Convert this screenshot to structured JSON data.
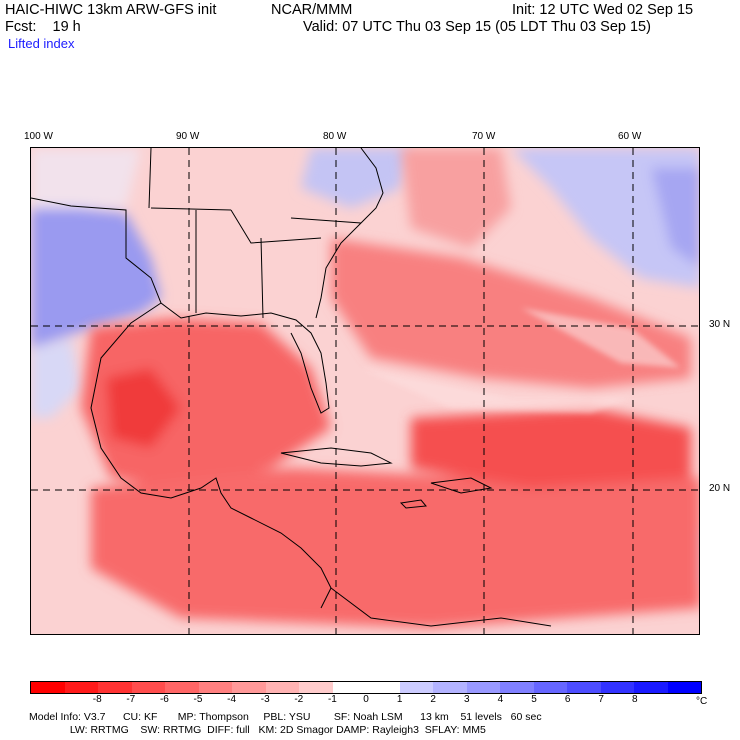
{
  "header": {
    "model": "HAIC-HIWC 13km ARW-GFS init",
    "org": "NCAR/MMM",
    "init": "Init: 12 UTC Wed 02 Sep 15",
    "fcst": "Fcst:    19 h",
    "valid": "Valid: 07 UTC Thu 03 Sep 15 (05 LDT Thu 03 Sep 15)",
    "field": "Lifted index"
  },
  "axes": {
    "lon_labels": [
      "100 W",
      "90 W",
      "80 W",
      "70 W",
      "60 W"
    ],
    "lat_labels": [
      "30 N",
      "20 N"
    ]
  },
  "colorbar": {
    "ticks": [
      "-8",
      "-7",
      "-6",
      "-5",
      "-4",
      "-3",
      "-2",
      "-1",
      "0",
      "1",
      "2",
      "3",
      "4",
      "5",
      "6",
      "7",
      "8"
    ],
    "unit": "°C",
    "colors": [
      "#ff0000",
      "#ff1a1a",
      "#ff3333",
      "#ff4d4d",
      "#ff6666",
      "#ff8080",
      "#ff9999",
      "#ffb3b3",
      "#ffcccc",
      "#ffffff",
      "#ffffff",
      "#ccccff",
      "#b3b3ff",
      "#9999ff",
      "#8080ff",
      "#6666ff",
      "#4d4dff",
      "#3333ff",
      "#1a1aff",
      "#0000ff"
    ]
  },
  "footer": {
    "line1": "Model Info: V3.7      CU: KF       MP: Thompson     PBL: YSU        SF: Noah LSM      13 km    51 levels   60 sec",
    "line2": "              LW: RRTMG    SW: RRTMG  DIFF: full   KM: 2D Smagor DAMP: Rayleigh3  SFLAY: MM5"
  },
  "map_colors": {
    "strong_neg": "#f53a3a",
    "neg": "#f76a6a",
    "mild_neg": "#f99a9a",
    "light_neg": "#fccaca",
    "neutral": "#fdebeb",
    "pos": "#c9c9f6",
    "strong_pos": "#8f8fee"
  }
}
